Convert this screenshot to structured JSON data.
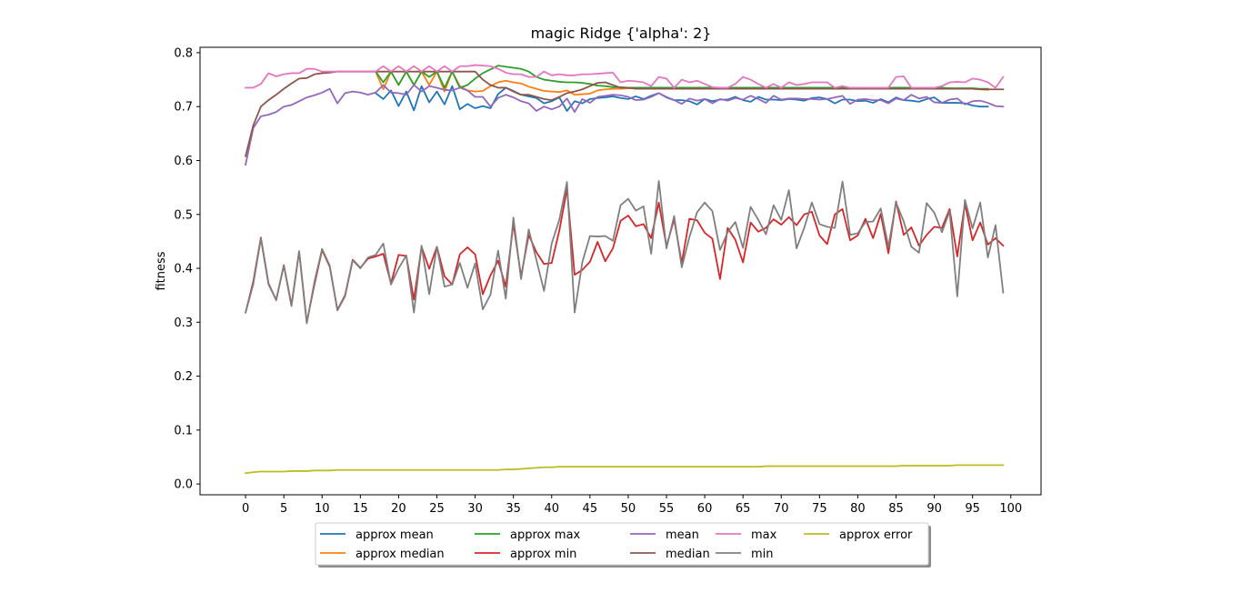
{
  "chart_data": {
    "type": "line",
    "title": "magic Ridge {'alpha': 2}",
    "xlabel": "",
    "ylabel": "fitness",
    "xlim": [
      -5.95,
      103.95
    ],
    "ylim": [
      -0.02,
      0.81
    ],
    "xticks": [
      0,
      5,
      10,
      15,
      20,
      25,
      30,
      35,
      40,
      45,
      50,
      55,
      60,
      65,
      70,
      75,
      80,
      85,
      90,
      95,
      100
    ],
    "yticks": [
      0.0,
      0.1,
      0.2,
      0.3,
      0.4,
      0.5,
      0.6,
      0.7,
      0.8
    ],
    "grid": false,
    "legend_position": "bottom-center",
    "series": [
      {
        "name": "approx mean",
        "color": "#1f77b4",
        "start": 17,
        "values": [
          0.725,
          0.714,
          0.73,
          0.701,
          0.728,
          0.693,
          0.738,
          0.708,
          0.728,
          0.704,
          0.738,
          0.695,
          0.705,
          0.697,
          0.701,
          0.697,
          0.723,
          0.735,
          0.729,
          0.722,
          0.719,
          0.716,
          0.706,
          0.71,
          0.717,
          0.692,
          0.71,
          0.706,
          0.714,
          0.716,
          0.717,
          0.719,
          0.716,
          0.714,
          0.719,
          0.714,
          0.72,
          0.725,
          0.717,
          0.712,
          0.712,
          0.71,
          0.704,
          0.714,
          0.71,
          0.713,
          0.713,
          0.718,
          0.712,
          0.709,
          0.718,
          0.713,
          0.713,
          0.712,
          0.714,
          0.713,
          0.711,
          0.716,
          0.717,
          0.714,
          0.706,
          0.713,
          0.713,
          0.71,
          0.711,
          0.707,
          0.714,
          0.708,
          0.717,
          0.712,
          0.711,
          0.709,
          0.714,
          0.717,
          0.707,
          0.707,
          0.707,
          0.706,
          0.702,
          0.7,
          0.7
        ]
      },
      {
        "name": "approx median",
        "color": "#ff7f0e",
        "start": 17,
        "values": [
          0.765,
          0.732,
          0.765,
          0.74,
          0.765,
          0.74,
          0.765,
          0.74,
          0.765,
          0.728,
          0.765,
          0.738,
          0.73,
          0.728,
          0.729,
          0.738,
          0.745,
          0.748,
          0.745,
          0.743,
          0.737,
          0.733,
          0.729,
          0.728,
          0.727,
          0.73,
          0.722,
          0.723,
          0.724,
          0.73,
          0.732,
          0.733,
          0.733,
          0.734,
          0.734,
          0.733,
          0.733,
          0.733,
          0.733,
          0.733,
          0.733,
          0.733,
          0.733,
          0.733,
          0.733,
          0.733,
          0.733,
          0.733,
          0.733,
          0.733,
          0.733,
          0.733,
          0.733,
          0.733,
          0.733,
          0.733,
          0.733,
          0.733,
          0.733,
          0.733,
          0.733,
          0.733,
          0.733,
          0.733,
          0.733,
          0.733,
          0.733,
          0.733,
          0.733,
          0.733,
          0.733,
          0.733,
          0.733,
          0.733,
          0.733,
          0.733,
          0.733,
          0.733,
          0.733,
          0.732,
          0.731
        ]
      },
      {
        "name": "approx max",
        "color": "#2ca02c",
        "start": 17,
        "values": [
          0.765,
          0.745,
          0.765,
          0.74,
          0.765,
          0.74,
          0.765,
          0.755,
          0.765,
          0.735,
          0.765,
          0.735,
          0.74,
          0.752,
          0.762,
          0.769,
          0.776,
          0.774,
          0.772,
          0.77,
          0.765,
          0.755,
          0.75,
          0.748,
          0.746,
          0.745,
          0.745,
          0.744,
          0.742,
          0.739,
          0.738,
          0.736,
          0.736,
          0.735,
          0.735,
          0.735,
          0.735,
          0.735,
          0.735,
          0.735,
          0.735,
          0.735,
          0.735,
          0.735,
          0.735,
          0.735,
          0.735,
          0.735,
          0.735,
          0.735,
          0.735,
          0.735,
          0.735,
          0.735,
          0.735,
          0.735,
          0.735,
          0.735,
          0.735,
          0.735,
          0.735,
          0.735,
          0.735,
          0.735,
          0.735,
          0.735,
          0.735,
          0.735,
          0.735,
          0.735,
          0.735,
          0.735,
          0.735,
          0.735,
          0.735,
          0.734,
          0.734,
          0.734,
          0.734,
          0.733,
          0.733
        ]
      },
      {
        "name": "approx min",
        "color": "#d62728",
        "start": 0,
        "values": [
          0.318,
          0.375,
          0.457,
          0.372,
          0.341,
          0.406,
          0.332,
          0.431,
          0.3,
          0.37,
          0.434,
          0.403,
          0.323,
          0.35,
          0.416,
          0.401,
          0.418,
          0.422,
          0.427,
          0.372,
          0.425,
          0.423,
          0.342,
          0.44,
          0.399,
          0.44,
          0.385,
          0.37,
          0.426,
          0.439,
          0.426,
          0.352,
          0.387,
          0.414,
          0.366,
          0.483,
          0.385,
          0.462,
          0.43,
          0.408,
          0.41,
          0.47,
          0.547,
          0.388,
          0.397,
          0.412,
          0.449,
          0.413,
          0.437,
          0.488,
          0.498,
          0.478,
          0.482,
          0.456,
          0.522,
          0.441,
          0.491,
          0.41,
          0.492,
          0.489,
          0.466,
          0.455,
          0.38,
          0.475,
          0.453,
          0.411,
          0.485,
          0.468,
          0.475,
          0.491,
          0.481,
          0.495,
          0.48,
          0.5,
          0.505,
          0.461,
          0.445,
          0.5,
          0.51,
          0.452,
          0.461,
          0.492,
          0.456,
          0.501,
          0.428,
          0.524,
          0.462,
          0.476,
          0.442,
          0.462,
          0.477,
          0.475,
          0.51,
          0.422,
          0.52,
          0.452,
          0.485,
          0.444,
          0.456,
          0.442
        ]
      },
      {
        "name": "mean",
        "color": "#9467bd",
        "start": 0,
        "values": [
          0.592,
          0.66,
          0.682,
          0.685,
          0.69,
          0.7,
          0.703,
          0.71,
          0.717,
          0.721,
          0.726,
          0.733,
          0.706,
          0.725,
          0.728,
          0.726,
          0.722,
          0.726,
          0.74,
          0.726,
          0.725,
          0.722,
          0.74,
          0.728,
          0.738,
          0.735,
          0.731,
          0.73,
          0.735,
          0.73,
          0.718,
          0.718,
          0.7,
          0.716,
          0.722,
          0.717,
          0.71,
          0.706,
          0.692,
          0.7,
          0.695,
          0.7,
          0.715,
          0.69,
          0.714,
          0.707,
          0.718,
          0.72,
          0.722,
          0.721,
          0.718,
          0.712,
          0.713,
          0.718,
          0.725,
          0.718,
          0.712,
          0.705,
          0.715,
          0.711,
          0.714,
          0.706,
          0.714,
          0.711,
          0.716,
          0.713,
          0.72,
          0.714,
          0.707,
          0.72,
          0.713,
          0.715,
          0.715,
          0.714,
          0.714,
          0.713,
          0.714,
          0.717,
          0.72,
          0.705,
          0.713,
          0.714,
          0.712,
          0.712,
          0.706,
          0.715,
          0.712,
          0.722,
          0.715,
          0.718,
          0.708,
          0.707,
          0.713,
          0.715,
          0.704,
          0.71,
          0.711,
          0.707,
          0.701,
          0.7
        ]
      },
      {
        "name": "median",
        "color": "#8c564b",
        "start": 0,
        "values": [
          0.608,
          0.665,
          0.7,
          0.712,
          0.722,
          0.733,
          0.743,
          0.752,
          0.753,
          0.76,
          0.762,
          0.763,
          0.765,
          0.765,
          0.765,
          0.765,
          0.765,
          0.765,
          0.765,
          0.765,
          0.765,
          0.765,
          0.765,
          0.765,
          0.765,
          0.765,
          0.765,
          0.765,
          0.765,
          0.765,
          0.765,
          0.75,
          0.74,
          0.735,
          0.735,
          0.728,
          0.722,
          0.722,
          0.718,
          0.714,
          0.712,
          0.718,
          0.725,
          0.728,
          0.732,
          0.738,
          0.744,
          0.745,
          0.74,
          0.735,
          0.735,
          0.733,
          0.733,
          0.733,
          0.733,
          0.733,
          0.733,
          0.733,
          0.733,
          0.733,
          0.733,
          0.733,
          0.733,
          0.733,
          0.733,
          0.733,
          0.733,
          0.733,
          0.733,
          0.733,
          0.733,
          0.733,
          0.733,
          0.733,
          0.733,
          0.733,
          0.733,
          0.733,
          0.733,
          0.733,
          0.733,
          0.733,
          0.733,
          0.733,
          0.733,
          0.733,
          0.733,
          0.733,
          0.733,
          0.733,
          0.733,
          0.733,
          0.733,
          0.733,
          0.733,
          0.733,
          0.732,
          0.732,
          0.732,
          0.732
        ]
      },
      {
        "name": "max",
        "color": "#e377c2",
        "start": 0,
        "values": [
          0.735,
          0.735,
          0.742,
          0.762,
          0.756,
          0.76,
          0.762,
          0.762,
          0.77,
          0.77,
          0.765,
          0.765,
          0.765,
          0.765,
          0.765,
          0.765,
          0.765,
          0.765,
          0.775,
          0.765,
          0.775,
          0.765,
          0.775,
          0.765,
          0.775,
          0.765,
          0.775,
          0.765,
          0.775,
          0.775,
          0.777,
          0.776,
          0.775,
          0.77,
          0.763,
          0.76,
          0.76,
          0.755,
          0.755,
          0.765,
          0.758,
          0.76,
          0.758,
          0.758,
          0.76,
          0.76,
          0.761,
          0.762,
          0.763,
          0.745,
          0.748,
          0.747,
          0.745,
          0.738,
          0.755,
          0.752,
          0.735,
          0.75,
          0.745,
          0.748,
          0.742,
          0.736,
          0.735,
          0.735,
          0.742,
          0.755,
          0.75,
          0.742,
          0.735,
          0.742,
          0.735,
          0.745,
          0.74,
          0.742,
          0.745,
          0.745,
          0.745,
          0.735,
          0.738,
          0.735,
          0.735,
          0.735,
          0.735,
          0.735,
          0.735,
          0.755,
          0.756,
          0.735,
          0.735,
          0.735,
          0.735,
          0.738,
          0.745,
          0.746,
          0.745,
          0.752,
          0.75,
          0.745,
          0.735,
          0.755
        ]
      },
      {
        "name": "min",
        "color": "#7f7f7f",
        "start": 0,
        "values": [
          0.318,
          0.37,
          0.455,
          0.37,
          0.342,
          0.405,
          0.33,
          0.432,
          0.298,
          0.375,
          0.436,
          0.405,
          0.322,
          0.348,
          0.415,
          0.4,
          0.42,
          0.425,
          0.446,
          0.37,
          0.4,
          0.424,
          0.318,
          0.442,
          0.352,
          0.44,
          0.366,
          0.37,
          0.41,
          0.364,
          0.409,
          0.324,
          0.351,
          0.433,
          0.344,
          0.494,
          0.38,
          0.472,
          0.416,
          0.358,
          0.446,
          0.49,
          0.56,
          0.318,
          0.411,
          0.46,
          0.459,
          0.46,
          0.451,
          0.517,
          0.529,
          0.507,
          0.515,
          0.427,
          0.562,
          0.437,
          0.497,
          0.402,
          0.458,
          0.504,
          0.522,
          0.506,
          0.434,
          0.467,
          0.486,
          0.438,
          0.514,
          0.49,
          0.463,
          0.517,
          0.49,
          0.545,
          0.437,
          0.475,
          0.522,
          0.482,
          0.477,
          0.475,
          0.561,
          0.462,
          0.465,
          0.486,
          0.487,
          0.511,
          0.44,
          0.522,
          0.487,
          0.44,
          0.429,
          0.521,
          0.503,
          0.467,
          0.506,
          0.348,
          0.527,
          0.474,
          0.522,
          0.42,
          0.48,
          0.355
        ]
      },
      {
        "name": "approx error",
        "color": "#bcbd22",
        "start": 0,
        "values": [
          0.02,
          0.022,
          0.023,
          0.023,
          0.023,
          0.023,
          0.024,
          0.024,
          0.024,
          0.025,
          0.025,
          0.025,
          0.026,
          0.026,
          0.026,
          0.026,
          0.026,
          0.026,
          0.026,
          0.026,
          0.026,
          0.026,
          0.026,
          0.026,
          0.026,
          0.026,
          0.026,
          0.026,
          0.026,
          0.026,
          0.026,
          0.026,
          0.026,
          0.026,
          0.027,
          0.027,
          0.028,
          0.029,
          0.03,
          0.031,
          0.031,
          0.032,
          0.032,
          0.032,
          0.032,
          0.032,
          0.032,
          0.032,
          0.032,
          0.032,
          0.032,
          0.032,
          0.032,
          0.032,
          0.032,
          0.032,
          0.032,
          0.032,
          0.032,
          0.032,
          0.032,
          0.032,
          0.032,
          0.032,
          0.032,
          0.032,
          0.032,
          0.032,
          0.033,
          0.033,
          0.033,
          0.033,
          0.033,
          0.033,
          0.033,
          0.033,
          0.033,
          0.033,
          0.033,
          0.033,
          0.033,
          0.033,
          0.033,
          0.033,
          0.033,
          0.033,
          0.034,
          0.034,
          0.034,
          0.034,
          0.034,
          0.034,
          0.034,
          0.035,
          0.035,
          0.035,
          0.035,
          0.035,
          0.035,
          0.035
        ]
      }
    ]
  }
}
